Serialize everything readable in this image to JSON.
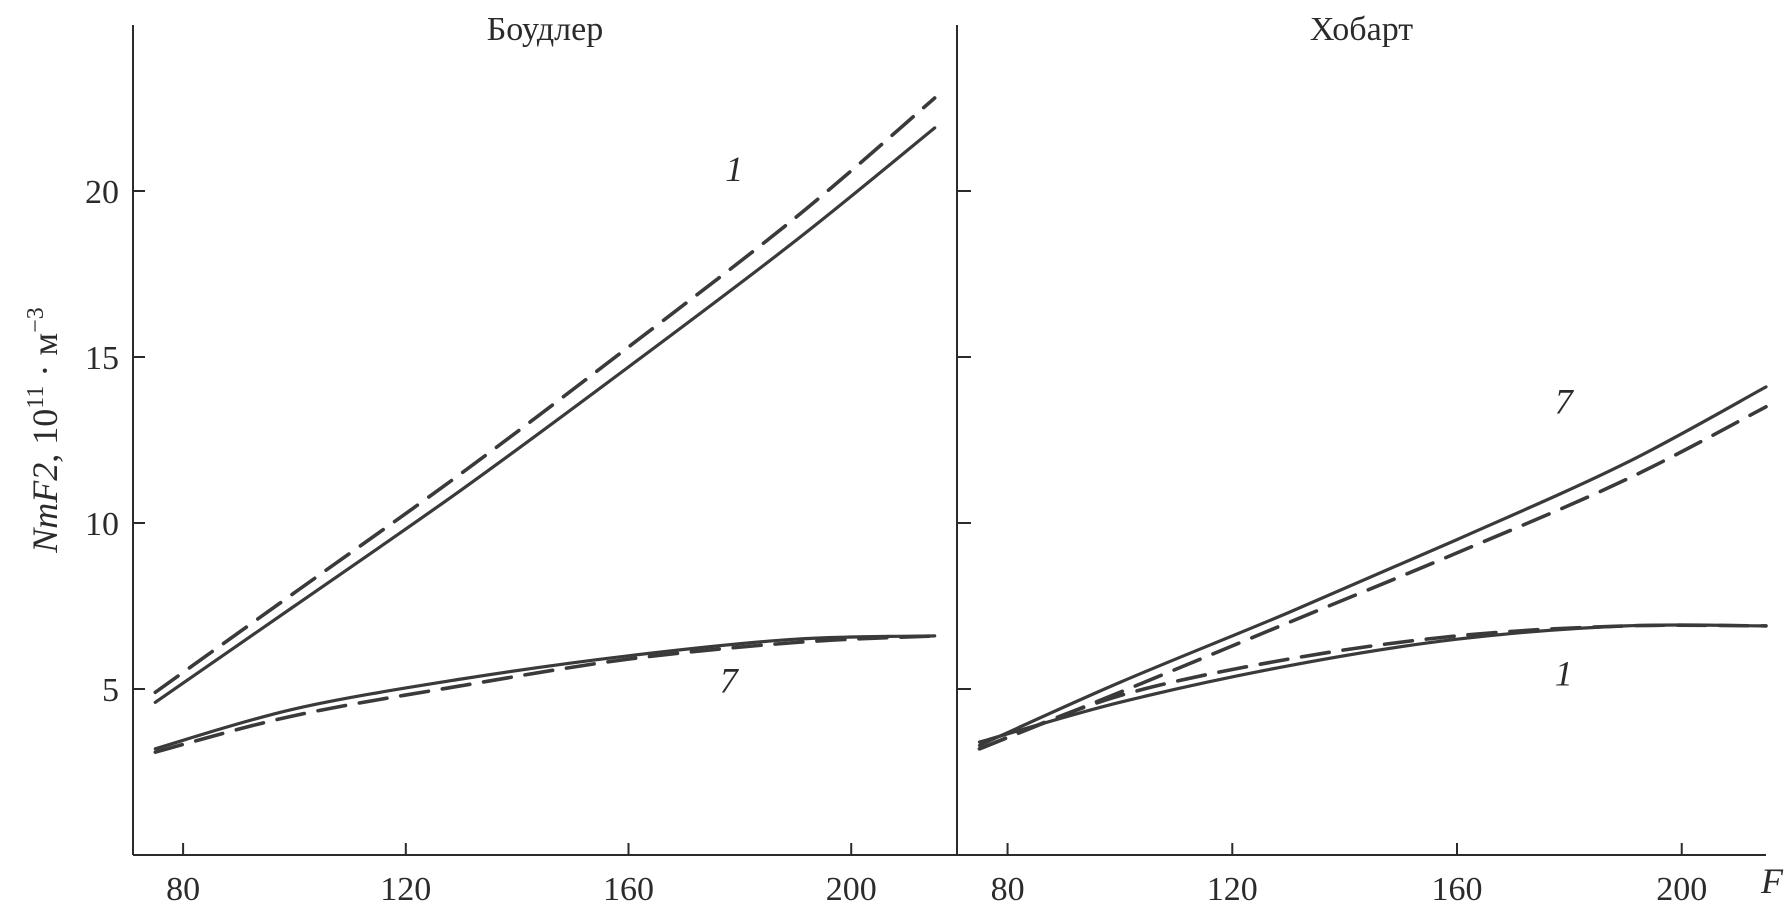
{
  "chart_data": {
    "type": "line",
    "ylabel_main": "NmF2",
    "ylabel_rest": ", 10",
    "ylabel_exp1": "11",
    "ylabel_dot": " · м",
    "ylabel_exp2": "−3",
    "xlabel": "F",
    "ylim": [
      0,
      25
    ],
    "yticks": [
      5,
      10,
      15,
      20
    ],
    "xticks": [
      80,
      120,
      160,
      200
    ],
    "panels": [
      {
        "title": "Боудлер",
        "xlim": [
          71,
          219
        ],
        "labels": [
          {
            "text": "1",
            "x": 179,
            "y": 20.3
          },
          {
            "text": "7",
            "x": 178,
            "y": 4.9
          }
        ],
        "series": [
          {
            "id": "b1-solid",
            "style": "solid",
            "x": [
              75,
              100,
              130,
              160,
              190,
              215
            ],
            "y": [
              4.6,
              7.5,
              11.0,
              14.7,
              18.5,
              21.9
            ]
          },
          {
            "id": "b1-dashed",
            "style": "dashed",
            "x": [
              75,
              100,
              130,
              160,
              190,
              215
            ],
            "y": [
              4.9,
              7.9,
              11.5,
              15.3,
              19.2,
              22.8
            ]
          },
          {
            "id": "b7-solid",
            "style": "solid",
            "x": [
              75,
              100,
              130,
              160,
              190,
              215
            ],
            "y": [
              3.2,
              4.4,
              5.3,
              6.0,
              6.5,
              6.6
            ]
          },
          {
            "id": "b7-dashed",
            "style": "dashed",
            "x": [
              75,
              100,
              130,
              160,
              190,
              215
            ],
            "y": [
              3.1,
              4.2,
              5.1,
              5.9,
              6.4,
              6.6
            ]
          }
        ]
      },
      {
        "title": "Хобарт",
        "xlim": [
          71,
          215
        ],
        "labels": [
          {
            "text": "7",
            "x": 179,
            "y": 13.3
          },
          {
            "text": "1",
            "x": 179,
            "y": 5.1
          }
        ],
        "series": [
          {
            "id": "h7-solid",
            "style": "solid",
            "x": [
              75,
              100,
              130,
              160,
              190,
              215
            ],
            "y": [
              3.3,
              5.2,
              7.3,
              9.5,
              11.8,
              14.1
            ]
          },
          {
            "id": "h7-dashed",
            "style": "dashed",
            "x": [
              75,
              100,
              130,
              160,
              190,
              215
            ],
            "y": [
              3.2,
              4.9,
              7.0,
              9.1,
              11.3,
              13.5
            ]
          },
          {
            "id": "h1-solid",
            "style": "solid",
            "x": [
              75,
              100,
              130,
              160,
              190,
              215
            ],
            "y": [
              3.4,
              4.6,
              5.7,
              6.5,
              6.9,
              6.9
            ]
          },
          {
            "id": "h1-dashed",
            "style": "dashed",
            "x": [
              75,
              100,
              130,
              160,
              190,
              215
            ],
            "y": [
              3.2,
              4.8,
              5.9,
              6.6,
              6.9,
              6.9
            ]
          }
        ]
      }
    ]
  }
}
